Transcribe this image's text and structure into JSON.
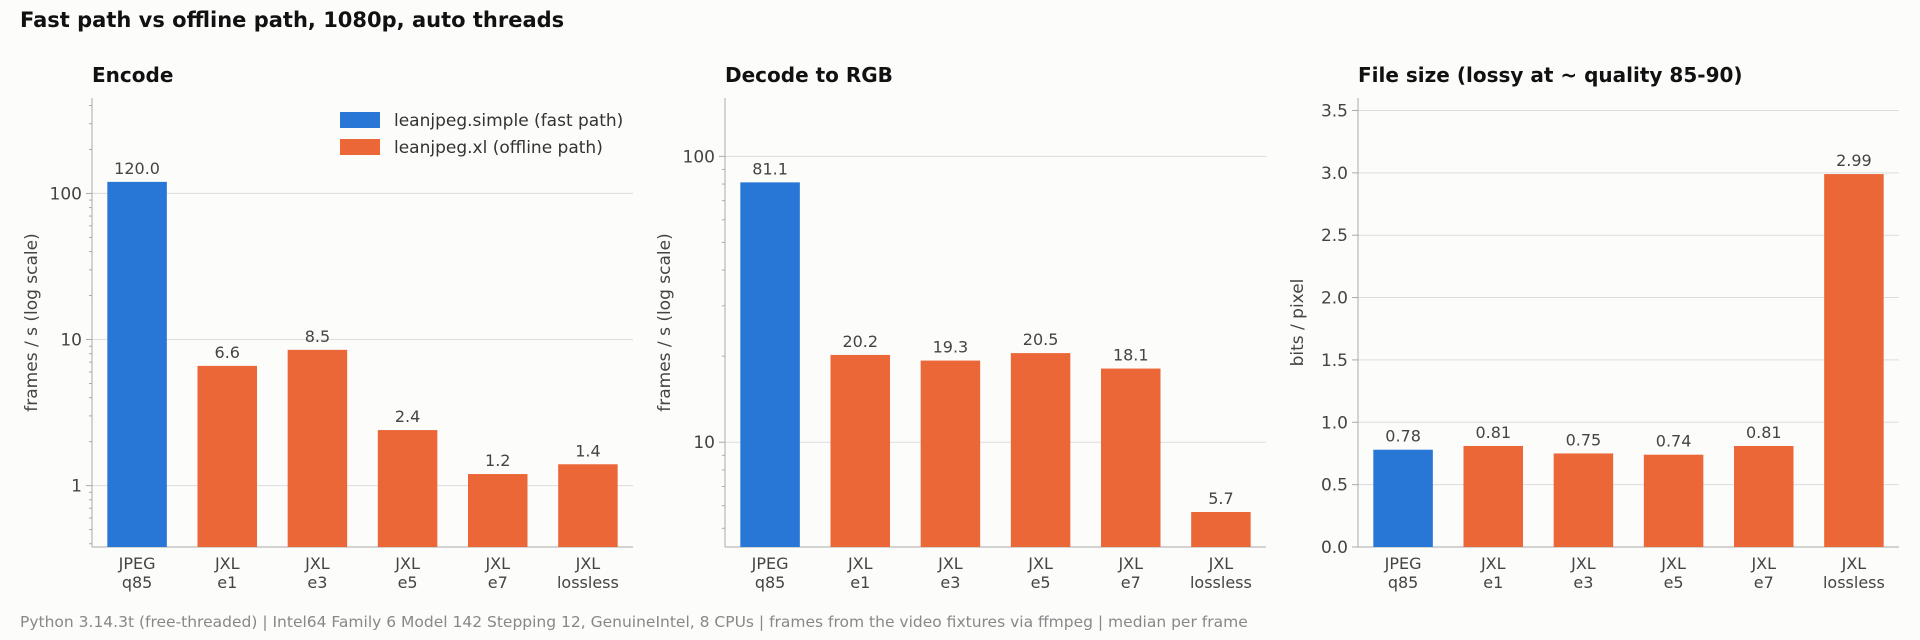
{
  "title": "Fast path vs offline path, 1080p, auto threads",
  "footer": "Python 3.14.3t (free-threaded) | Intel64 Family 6 Model 142 Stepping 12, GenuineIntel, 8 CPUs | frames from the video fixtures via ffmpeg | median per frame",
  "colors": {
    "fast": "#2876d6",
    "offline": "#eb6737",
    "grid": "#dddddd",
    "axis": "#aaaaaa",
    "text": "#444444"
  },
  "legend": [
    {
      "label": "leanjpeg.simple (fast path)",
      "color": "#2876d6"
    },
    {
      "label": "leanjpeg.xl (offline path)",
      "color": "#eb6737"
    }
  ],
  "chart_data": [
    {
      "type": "bar",
      "title": "Encode",
      "ylabel": "frames / s (log scale)",
      "yscale": "log",
      "ylim": [
        0.38,
        450
      ],
      "yticks": [
        1,
        10,
        100
      ],
      "ytick_labels": [
        "1",
        "10",
        "100"
      ],
      "categories": [
        [
          "JPEG",
          "q85"
        ],
        [
          "JXL",
          "e1"
        ],
        [
          "JXL",
          "e3"
        ],
        [
          "JXL",
          "e5"
        ],
        [
          "JXL",
          "e7"
        ],
        [
          "JXL",
          "lossless"
        ]
      ],
      "values": [
        120.0,
        6.6,
        8.5,
        2.4,
        1.2,
        1.4
      ],
      "value_labels": [
        "120.0",
        "6.6",
        "8.5",
        "2.4",
        "1.2",
        "1.4"
      ],
      "bar_groups": [
        "fast",
        "offline",
        "offline",
        "offline",
        "offline",
        "offline"
      ],
      "legend": "top-right"
    },
    {
      "type": "bar",
      "title": "Decode to RGB",
      "ylabel": "frames / s (log scale)",
      "yscale": "log",
      "ylim": [
        4.3,
        160
      ],
      "yticks": [
        10,
        100
      ],
      "ytick_labels": [
        "10",
        "100"
      ],
      "categories": [
        [
          "JPEG",
          "q85"
        ],
        [
          "JXL",
          "e1"
        ],
        [
          "JXL",
          "e3"
        ],
        [
          "JXL",
          "e5"
        ],
        [
          "JXL",
          "e7"
        ],
        [
          "JXL",
          "lossless"
        ]
      ],
      "values": [
        81.1,
        20.2,
        19.3,
        20.5,
        18.1,
        5.7
      ],
      "value_labels": [
        "81.1",
        "20.2",
        "19.3",
        "20.5",
        "18.1",
        "5.7"
      ],
      "bar_groups": [
        "fast",
        "offline",
        "offline",
        "offline",
        "offline",
        "offline"
      ]
    },
    {
      "type": "bar",
      "title": "File size (lossy at ~ quality 85-90)",
      "ylabel": "bits / pixel",
      "yscale": "linear",
      "ylim": [
        0,
        3.6
      ],
      "yticks": [
        0,
        0.5,
        1.0,
        1.5,
        2.0,
        2.5,
        3.0,
        3.5
      ],
      "ytick_labels": [
        "0.0",
        "0.5",
        "1.0",
        "1.5",
        "2.0",
        "2.5",
        "3.0",
        "3.5"
      ],
      "categories": [
        [
          "JPEG",
          "q85"
        ],
        [
          "JXL",
          "e1"
        ],
        [
          "JXL",
          "e3"
        ],
        [
          "JXL",
          "e5"
        ],
        [
          "JXL",
          "e7"
        ],
        [
          "JXL",
          "lossless"
        ]
      ],
      "values": [
        0.78,
        0.81,
        0.75,
        0.74,
        0.81,
        2.99
      ],
      "value_labels": [
        "0.78",
        "0.81",
        "0.75",
        "0.74",
        "0.81",
        "2.99"
      ],
      "bar_groups": [
        "fast",
        "offline",
        "offline",
        "offline",
        "offline",
        "offline"
      ]
    }
  ]
}
